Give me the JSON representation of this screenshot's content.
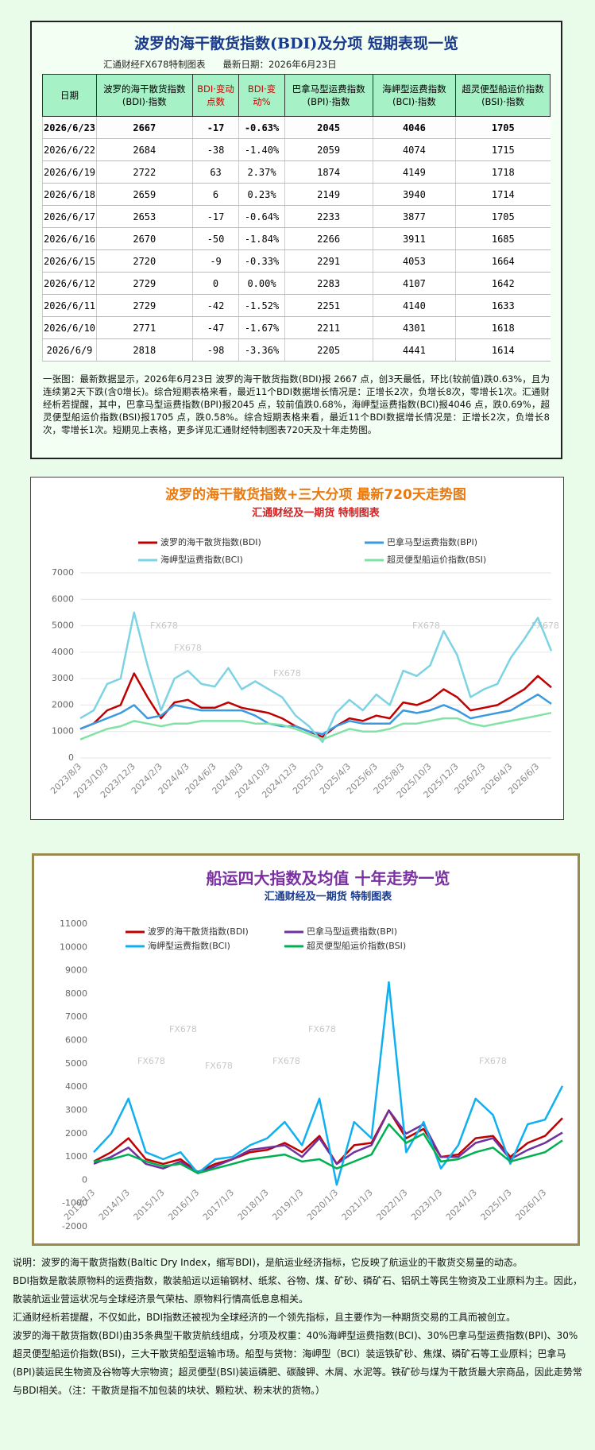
{
  "header": {
    "title": "波罗的海干散货指数(BDI)及分项  短期表现一览",
    "source": "汇通财经FX678特制图表",
    "date": "最新日期：2026年6月23日"
  },
  "table": {
    "columns": [
      "日期",
      "波罗的海干散货指数(BDI)·指数",
      "BDI·变动点数",
      "BDI·变动%",
      "巴拿马型运费指数(BPI)·指数",
      "海岬型运费指数(BCI)·指数",
      "超灵便型船运价指数(BSI)·指数"
    ],
    "rows": [
      [
        "2026/6/23",
        "2667",
        "-17",
        "-0.63%",
        "2045",
        "4046",
        "1705"
      ],
      [
        "2026/6/22",
        "2684",
        "-38",
        "-1.40%",
        "2059",
        "4074",
        "1715"
      ],
      [
        "2026/6/19",
        "2722",
        "63",
        "2.37%",
        "1874",
        "4149",
        "1718"
      ],
      [
        "2026/6/18",
        "2659",
        "6",
        "0.23%",
        "2149",
        "3940",
        "1714"
      ],
      [
        "2026/6/17",
        "2653",
        "-17",
        "-0.64%",
        "2233",
        "3877",
        "1705"
      ],
      [
        "2026/6/16",
        "2670",
        "-50",
        "-1.84%",
        "2266",
        "3911",
        "1685"
      ],
      [
        "2026/6/15",
        "2720",
        "-9",
        "-0.33%",
        "2291",
        "4053",
        "1664"
      ],
      [
        "2026/6/12",
        "2729",
        "0",
        "0.00%",
        "2283",
        "4107",
        "1642"
      ],
      [
        "2026/6/11",
        "2729",
        "-42",
        "-1.52%",
        "2251",
        "4140",
        "1633"
      ],
      [
        "2026/6/10",
        "2771",
        "-47",
        "-1.67%",
        "2211",
        "4301",
        "1618"
      ],
      [
        "2026/6/9",
        "2818",
        "-98",
        "-3.36%",
        "2205",
        "4441",
        "1614"
      ]
    ],
    "note": "一张图：最新数据显示，2026年6月23日 波罗的海干散货指数(BDI)报 2667 点，创3天最低，环比(较前值)跌0.63%，且为连续第2天下跌(含0增长)。综合短期表格来看，最近11个BDI数据增长情况是：正增长2次，负增长8次，零增长1次。汇通财经析若提醒，其中，巴拿马型运费指数(BPI)报2045 点，较前值跌0.68%，海岬型运费指数(BCI)报4046 点，跌0.69%，超灵便型船运价指数(BSI)报1705 点，跌0.58%。综合短期表格来看，最近11个BDI数据增长情况是：正增长2次，负增长8次，零增长1次。短期见上表格，更多详见汇通财经特制图表720天及十年走势图。"
  },
  "chart_data": [
    {
      "type": "line",
      "title": "波罗的海干散货指数+三大分项  最新720天走势图",
      "subtitle": "汇通财经及一期货 特制图表",
      "watermark": "FX678",
      "title_color": "#e87a10",
      "subtitle_color": "#d02020",
      "grid": true,
      "categories": [
        "2023/8/3",
        null,
        "2023/10/3",
        null,
        "2023/12/3",
        null,
        "2024/2/3",
        null,
        "2024/4/3",
        null,
        "2024/6/3",
        null,
        "2024/8/3",
        null,
        "2024/10/3",
        null,
        "2024/12/3",
        null,
        "2025/2/3",
        null,
        "2025/4/3",
        null,
        "2025/6/3",
        null,
        "2025/8/3",
        null,
        "2025/10/3",
        null,
        "2025/12/3",
        null,
        "2026/2/3",
        null,
        "2026/4/3",
        null,
        "2026/6/3",
        null
      ],
      "ylim": [
        0,
        7000
      ],
      "yticks": [
        0,
        1000,
        2000,
        3000,
        4000,
        5000,
        6000,
        7000
      ],
      "series": [
        {
          "name": "波罗的海干散货指数(BDI)",
          "color": "#c00000",
          "values": [
            1100,
            1300,
            1800,
            2000,
            3200,
            2300,
            1500,
            2100,
            2200,
            1900,
            1900,
            2100,
            1900,
            1800,
            1700,
            1500,
            1200,
            1000,
            800,
            1200,
            1500,
            1400,
            1600,
            1500,
            2100,
            2000,
            2200,
            2600,
            2300,
            1800,
            1900,
            2000,
            2300,
            2600,
            3100,
            2667
          ]
        },
        {
          "name": "巴拿马型运费指数(BPI)",
          "color": "#3a9ae0",
          "values": [
            1100,
            1300,
            1500,
            1700,
            2000,
            1500,
            1600,
            2000,
            1900,
            1800,
            1800,
            1800,
            1800,
            1600,
            1300,
            1200,
            1200,
            1000,
            900,
            1200,
            1400,
            1300,
            1300,
            1300,
            1800,
            1700,
            1800,
            2000,
            1800,
            1500,
            1600,
            1700,
            1800,
            2100,
            2400,
            2045
          ]
        },
        {
          "name": "海岬型运费指数(BCI)",
          "color": "#7cd3e3",
          "values": [
            1500,
            1800,
            2800,
            3000,
            5500,
            3500,
            1800,
            3000,
            3300,
            2800,
            2700,
            3400,
            2600,
            2900,
            2600,
            2300,
            1600,
            1200,
            600,
            1700,
            2200,
            1800,
            2400,
            2000,
            3300,
            3100,
            3500,
            4800,
            3900,
            2300,
            2600,
            2800,
            3800,
            4500,
            5300,
            4046
          ]
        },
        {
          "name": "超灵便型船运价指数(BSI)",
          "color": "#82e2a6",
          "values": [
            700,
            900,
            1100,
            1200,
            1400,
            1300,
            1200,
            1300,
            1300,
            1400,
            1400,
            1400,
            1400,
            1300,
            1300,
            1250,
            1100,
            900,
            700,
            900,
            1100,
            1000,
            1000,
            1100,
            1300,
            1300,
            1400,
            1500,
            1500,
            1300,
            1200,
            1300,
            1400,
            1500,
            1600,
            1705
          ]
        }
      ]
    },
    {
      "type": "line",
      "title": "船运四大指数及均值 十年走势一览",
      "subtitle": "汇通财经及一期货 特制图表",
      "watermark": "FX678",
      "title_color": "#7a30a0",
      "subtitle_color": "#1a3a8a",
      "grid": false,
      "categories": [
        "2013/1/3",
        null,
        "2014/1/3",
        null,
        "2015/1/3",
        null,
        "2016/1/3",
        null,
        "2017/1/3",
        null,
        "2018/1/3",
        null,
        "2019/1/3",
        null,
        "2020/1/3",
        null,
        "2021/1/3",
        null,
        "2022/1/3",
        null,
        "2023/1/3",
        null,
        "2024/1/3",
        null,
        "2025/1/3",
        null,
        "2026/1/3",
        null
      ],
      "ylim": [
        -2000,
        11000
      ],
      "yticks": [
        -2000,
        -1000,
        0,
        1000,
        2000,
        3000,
        4000,
        5000,
        6000,
        7000,
        8000,
        9000,
        10000,
        11000
      ],
      "series": [
        {
          "name": "波罗的海干散货指数(BDI)",
          "color": "#c00000",
          "values": [
            800,
            1200,
            1800,
            900,
            700,
            900,
            350,
            700,
            900,
            1200,
            1300,
            1600,
            1200,
            1900,
            700,
            1500,
            1600,
            3000,
            1800,
            2200,
            1000,
            1100,
            1800,
            1900,
            1000,
            1600,
            1900,
            2667
          ]
        },
        {
          "name": "巴拿马型运费指数(BPI)",
          "color": "#7030a0",
          "values": [
            700,
            1000,
            1400,
            700,
            500,
            800,
            300,
            600,
            900,
            1300,
            1400,
            1500,
            1000,
            1800,
            700,
            1200,
            1500,
            3000,
            2000,
            2400,
            1000,
            1000,
            1600,
            1800,
            900,
            1300,
            1600,
            2045
          ]
        },
        {
          "name": "海岬型运费指数(BCI)",
          "color": "#10b0f0",
          "values": [
            1200,
            2000,
            3500,
            1200,
            900,
            1200,
            300,
            900,
            1000,
            1500,
            1800,
            2500,
            1500,
            3500,
            -200,
            2500,
            1800,
            8500,
            1200,
            2500,
            500,
            1500,
            3500,
            2800,
            700,
            2400,
            2600,
            4046
          ]
        },
        {
          "name": "超灵便型船运价指数(BSI)",
          "color": "#00b050",
          "values": [
            800,
            900,
            1100,
            800,
            600,
            700,
            300,
            500,
            700,
            900,
            1000,
            1100,
            800,
            900,
            500,
            800,
            1100,
            2400,
            1600,
            2000,
            800,
            900,
            1200,
            1400,
            800,
            1000,
            1200,
            1705
          ]
        }
      ]
    }
  ],
  "notes": [
    "说明：波罗的海干散货指数(Baltic Dry Index，缩写BDI)，是航运业经济指标，它反映了航运业的干散货交易量的动态。",
    "BDI指数是散装原物料的运费指数，散装船运以运输钢材、纸浆、谷物、煤、矿砂、磷矿石、铝矾土等民生物资及工业原料为主。因此，散装航运业营运状况与全球经济景气荣枯、原物料行情高低息息相关。",
    "汇通财经析若提醒，不仅如此，BDI指数还被视为全球经济的一个领先指标，且主要作为一种期货交易的工具而被创立。",
    "波罗的海干散货指数(BDI)由35条典型干散货航线组成，分项及权重：40%海岬型运费指数(BCI)、30%巴拿马型运费指数(BPI)、30%超灵便型船运价指数(BSI)，三大干散货船型运输市场。船型与货物：海岬型（BCI）装运铁矿砂、焦煤、磷矿石等工业原料；巴拿马(BPI)装运民生物资及谷物等大宗物资；超灵便型(BSI)装运磷肥、碳酸钾、木屑、水泥等。铁矿砂与煤为干散货最大宗商品，因此走势常与BDI相关。（注：干散货是指不加包装的块状、颗粒状、粉末状的货物。）"
  ]
}
